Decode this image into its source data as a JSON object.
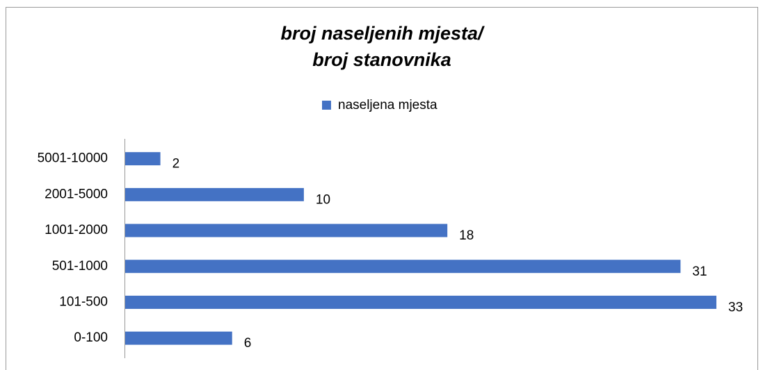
{
  "chart_data": {
    "type": "barh",
    "title": [
      "broj naseljenih mjesta/",
      "broj stanovnika"
    ],
    "categories": [
      "0-100",
      "101-500",
      "501-1000",
      "1001-2000",
      "2001-5000",
      "5001-10000"
    ],
    "series": [
      {
        "name": "naseljena mjesta",
        "color": "#4472c4",
        "values": [
          6,
          33,
          31,
          18,
          10,
          2
        ]
      }
    ],
    "legend": "top"
  }
}
